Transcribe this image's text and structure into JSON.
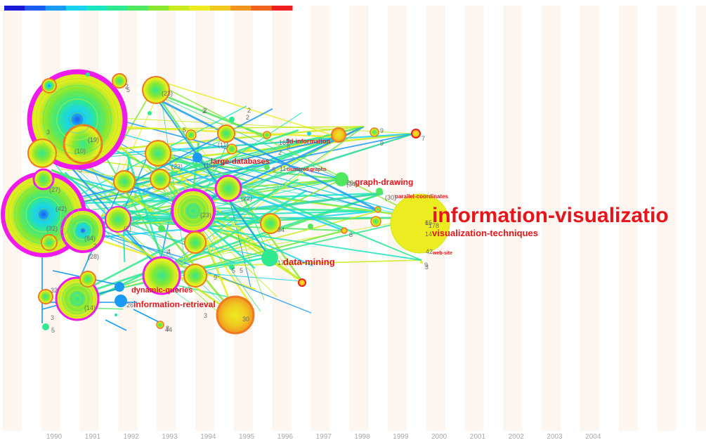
{
  "legend": {
    "colors": [
      "#1a1ad6",
      "#1a5cf0",
      "#1a9af5",
      "#1ad2f0",
      "#1ae6c0",
      "#30e890",
      "#50e860",
      "#88e830",
      "#c8ec20",
      "#ecec20",
      "#f0c820",
      "#f09620",
      "#f06420",
      "#f01e1e"
    ]
  },
  "timeline": {
    "years": [
      "1990",
      "1991",
      "1992",
      "1993",
      "1994",
      "1995",
      "1996",
      "1997",
      "1998",
      "1999",
      "2000",
      "2001",
      "2002",
      "2003",
      "2004"
    ]
  },
  "keywords": [
    {
      "id": "information-visualization",
      "label": "information-visualizatio"
    },
    {
      "id": "visualization-techniques",
      "label": "visualization-techniques"
    },
    {
      "id": "data-mining",
      "label": "data-mining"
    },
    {
      "id": "graph-drawing",
      "label": "graph-drawing"
    },
    {
      "id": "information-retrieval",
      "label": "information-retrieval"
    },
    {
      "id": "dynamic-queries",
      "label": "dynamic-queries"
    },
    {
      "id": "large-databases",
      "label": "large-databases"
    },
    {
      "id": "3d-information",
      "label": "3d-information"
    },
    {
      "id": "parallel-coordinates",
      "label": "parallel-coordinates"
    },
    {
      "id": "clustered-graphs",
      "label": "clustered-graphs"
    },
    {
      "id": "web-site",
      "label": "web-site"
    }
  ],
  "counts": [
    "2",
    "5",
    "3",
    "2",
    "2",
    "2",
    "5",
    "9",
    "9",
    "7",
    "16",
    "8",
    "2",
    "11",
    "6",
    "(15)",
    "(23)",
    "(34)",
    "(27)",
    "(42)",
    "(32)",
    "(84)",
    "(28)",
    "(14)",
    "(2)",
    "(10)",
    "(19)",
    "(23)",
    "(23)",
    "(22)",
    "(30)",
    "20",
    "34",
    "17",
    "44",
    "8",
    "5",
    "4",
    "5",
    "9",
    "3",
    "7",
    "26",
    "32",
    "3",
    "5",
    "6",
    "14",
    "42",
    "15",
    "178",
    "(11)",
    "5",
    "9",
    "3",
    "2",
    "7",
    "3",
    "30",
    "8"
  ],
  "colors": {
    "ring_magenta": "#ee1aee",
    "ring_orange": "#f07820",
    "ring_red": "#f01e1e",
    "keyword_red": "#e8141b",
    "stripe": "#fdf6f0"
  }
}
